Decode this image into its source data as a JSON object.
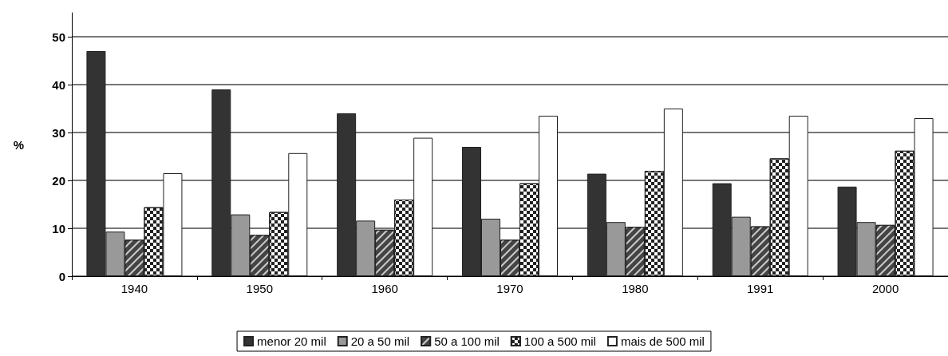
{
  "chart_data": {
    "type": "bar",
    "ylabel": "%",
    "categories": [
      "1940",
      "1950",
      "1960",
      "1970",
      "1980",
      "1991",
      "2000"
    ],
    "series": [
      {
        "name": "menor 20 mil",
        "color": "#333333",
        "values": [
          47,
          39,
          34,
          27,
          21.4,
          19.4,
          18.7
        ]
      },
      {
        "name": "20 a 50 mil",
        "color": "#999999",
        "values": [
          9.3,
          12.9,
          11.6,
          12,
          11.3,
          12.4,
          11.3
        ]
      },
      {
        "name": "50 a 100 mil",
        "color": "#444444",
        "values": [
          7.6,
          8.6,
          9.7,
          7.6,
          10.3,
          10.4,
          10.7
        ]
      },
      {
        "name": "100 a 500 mil",
        "color": "#ffffff",
        "values": [
          14.4,
          13.4,
          16,
          19.4,
          22,
          24.6,
          26.2
        ]
      },
      {
        "name": "mais de 500 mil",
        "color": "#ffffff",
        "values": [
          21.5,
          25.7,
          28.9,
          33.5,
          35,
          33.5,
          33
        ]
      }
    ],
    "ylim": [
      0,
      55
    ],
    "yticks": [
      0,
      10,
      20,
      30,
      40,
      50
    ],
    "grid": "y",
    "legend": "bottom"
  }
}
